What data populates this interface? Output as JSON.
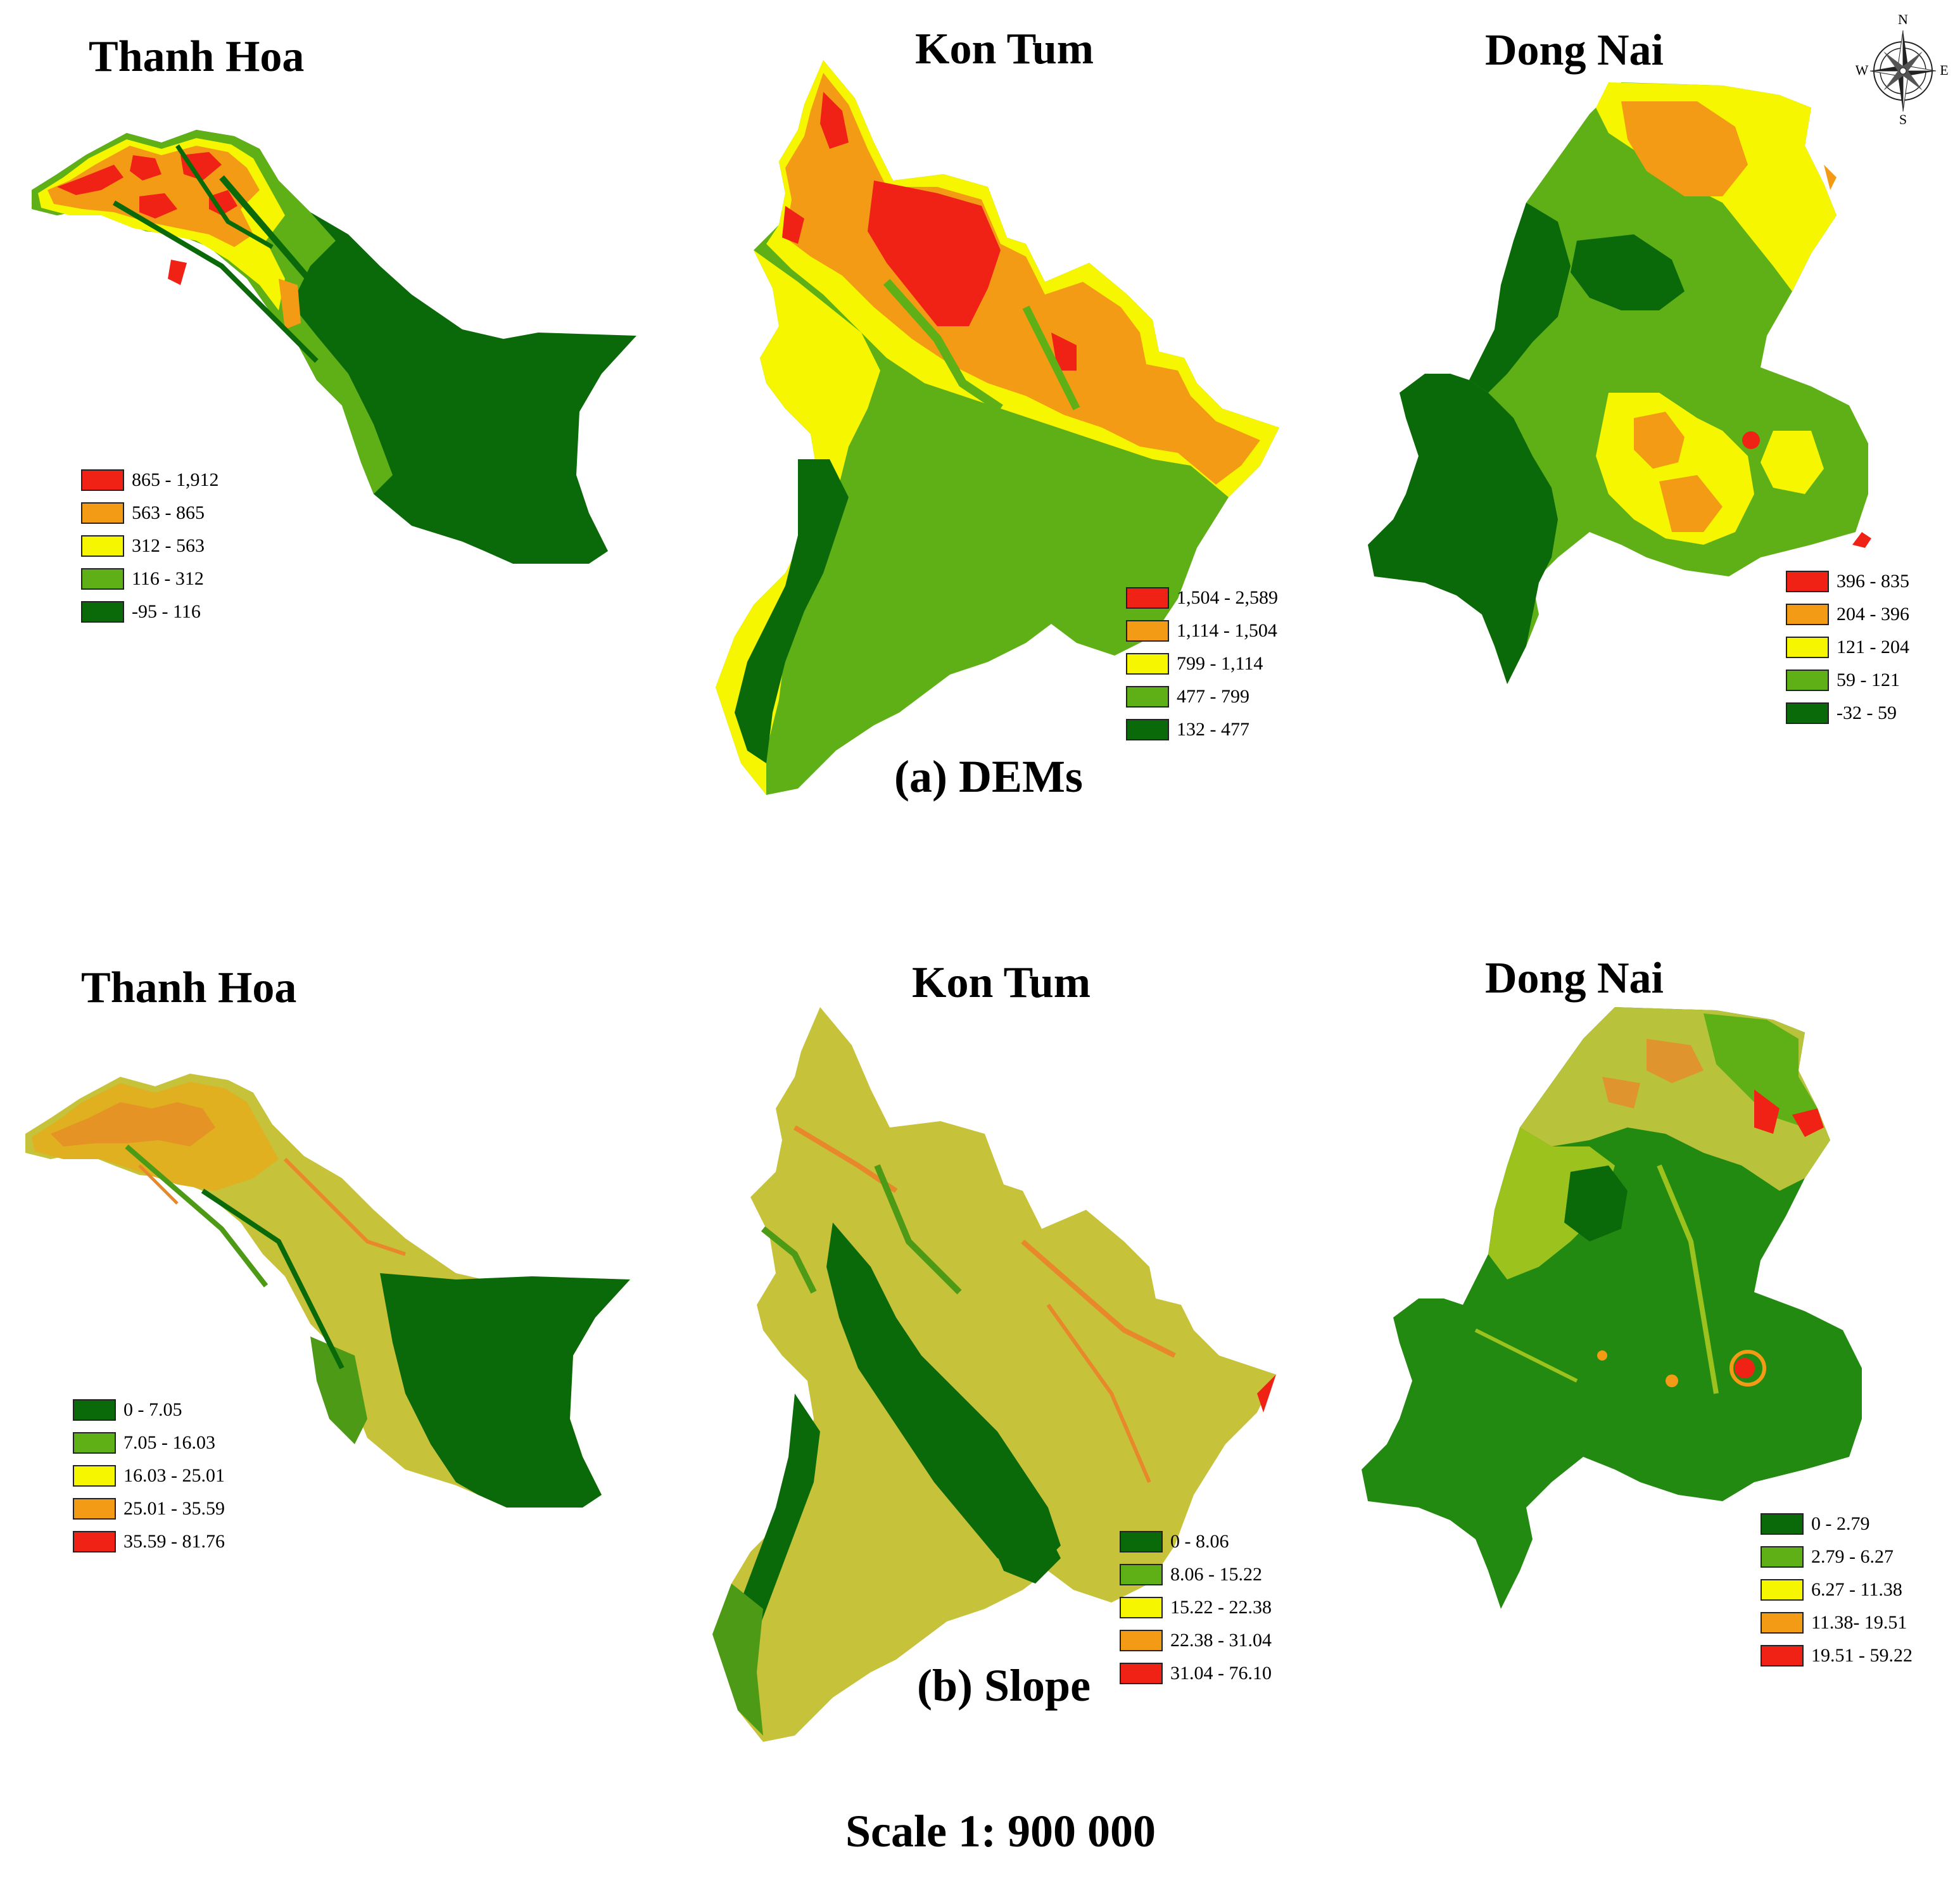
{
  "colors": {
    "class1": "#0a6a0a",
    "class2": "#5fb017",
    "class3": "#f6f600",
    "class4": "#f49b16",
    "class5": "#f02215"
  },
  "dem": {
    "caption": "(a) DEMs",
    "maps": [
      {
        "title": "Thanh Hoa",
        "legend": [
          "865 - 1,912",
          "563 - 865",
          "312 - 563",
          "116 - 312",
          "-95 - 116"
        ]
      },
      {
        "title": "Kon Tum",
        "legend": [
          "1,504 - 2,589",
          "1,114 - 1,504",
          "799 - 1,114",
          "477 - 799",
          "132 - 477"
        ]
      },
      {
        "title": "Dong Nai",
        "legend": [
          "396 - 835",
          "204 - 396",
          "121 - 204",
          "59 - 121",
          "-32 - 59"
        ]
      }
    ]
  },
  "slope": {
    "caption": "(b) Slope",
    "maps": [
      {
        "title": "Thanh Hoa",
        "legend": [
          "0 - 7.05",
          "7.05 - 16.03",
          "16.03 - 25.01",
          "25.01 - 35.59",
          "35.59 - 81.76"
        ]
      },
      {
        "title": "Kon Tum",
        "legend": [
          "0 - 8.06",
          "8.06 - 15.22",
          "15.22 - 22.38",
          "22.38 - 31.04",
          "31.04 - 76.10"
        ]
      },
      {
        "title": "Dong Nai",
        "legend": [
          "0 - 2.79",
          "2.79 - 6.27",
          "6.27 - 11.38",
          "11.38- 19.51",
          "19.51 - 59.22"
        ]
      }
    ]
  },
  "compass": {
    "n": "N",
    "e": "E",
    "s": "S",
    "w": "W"
  },
  "scale": "Scale 1: 900 000"
}
